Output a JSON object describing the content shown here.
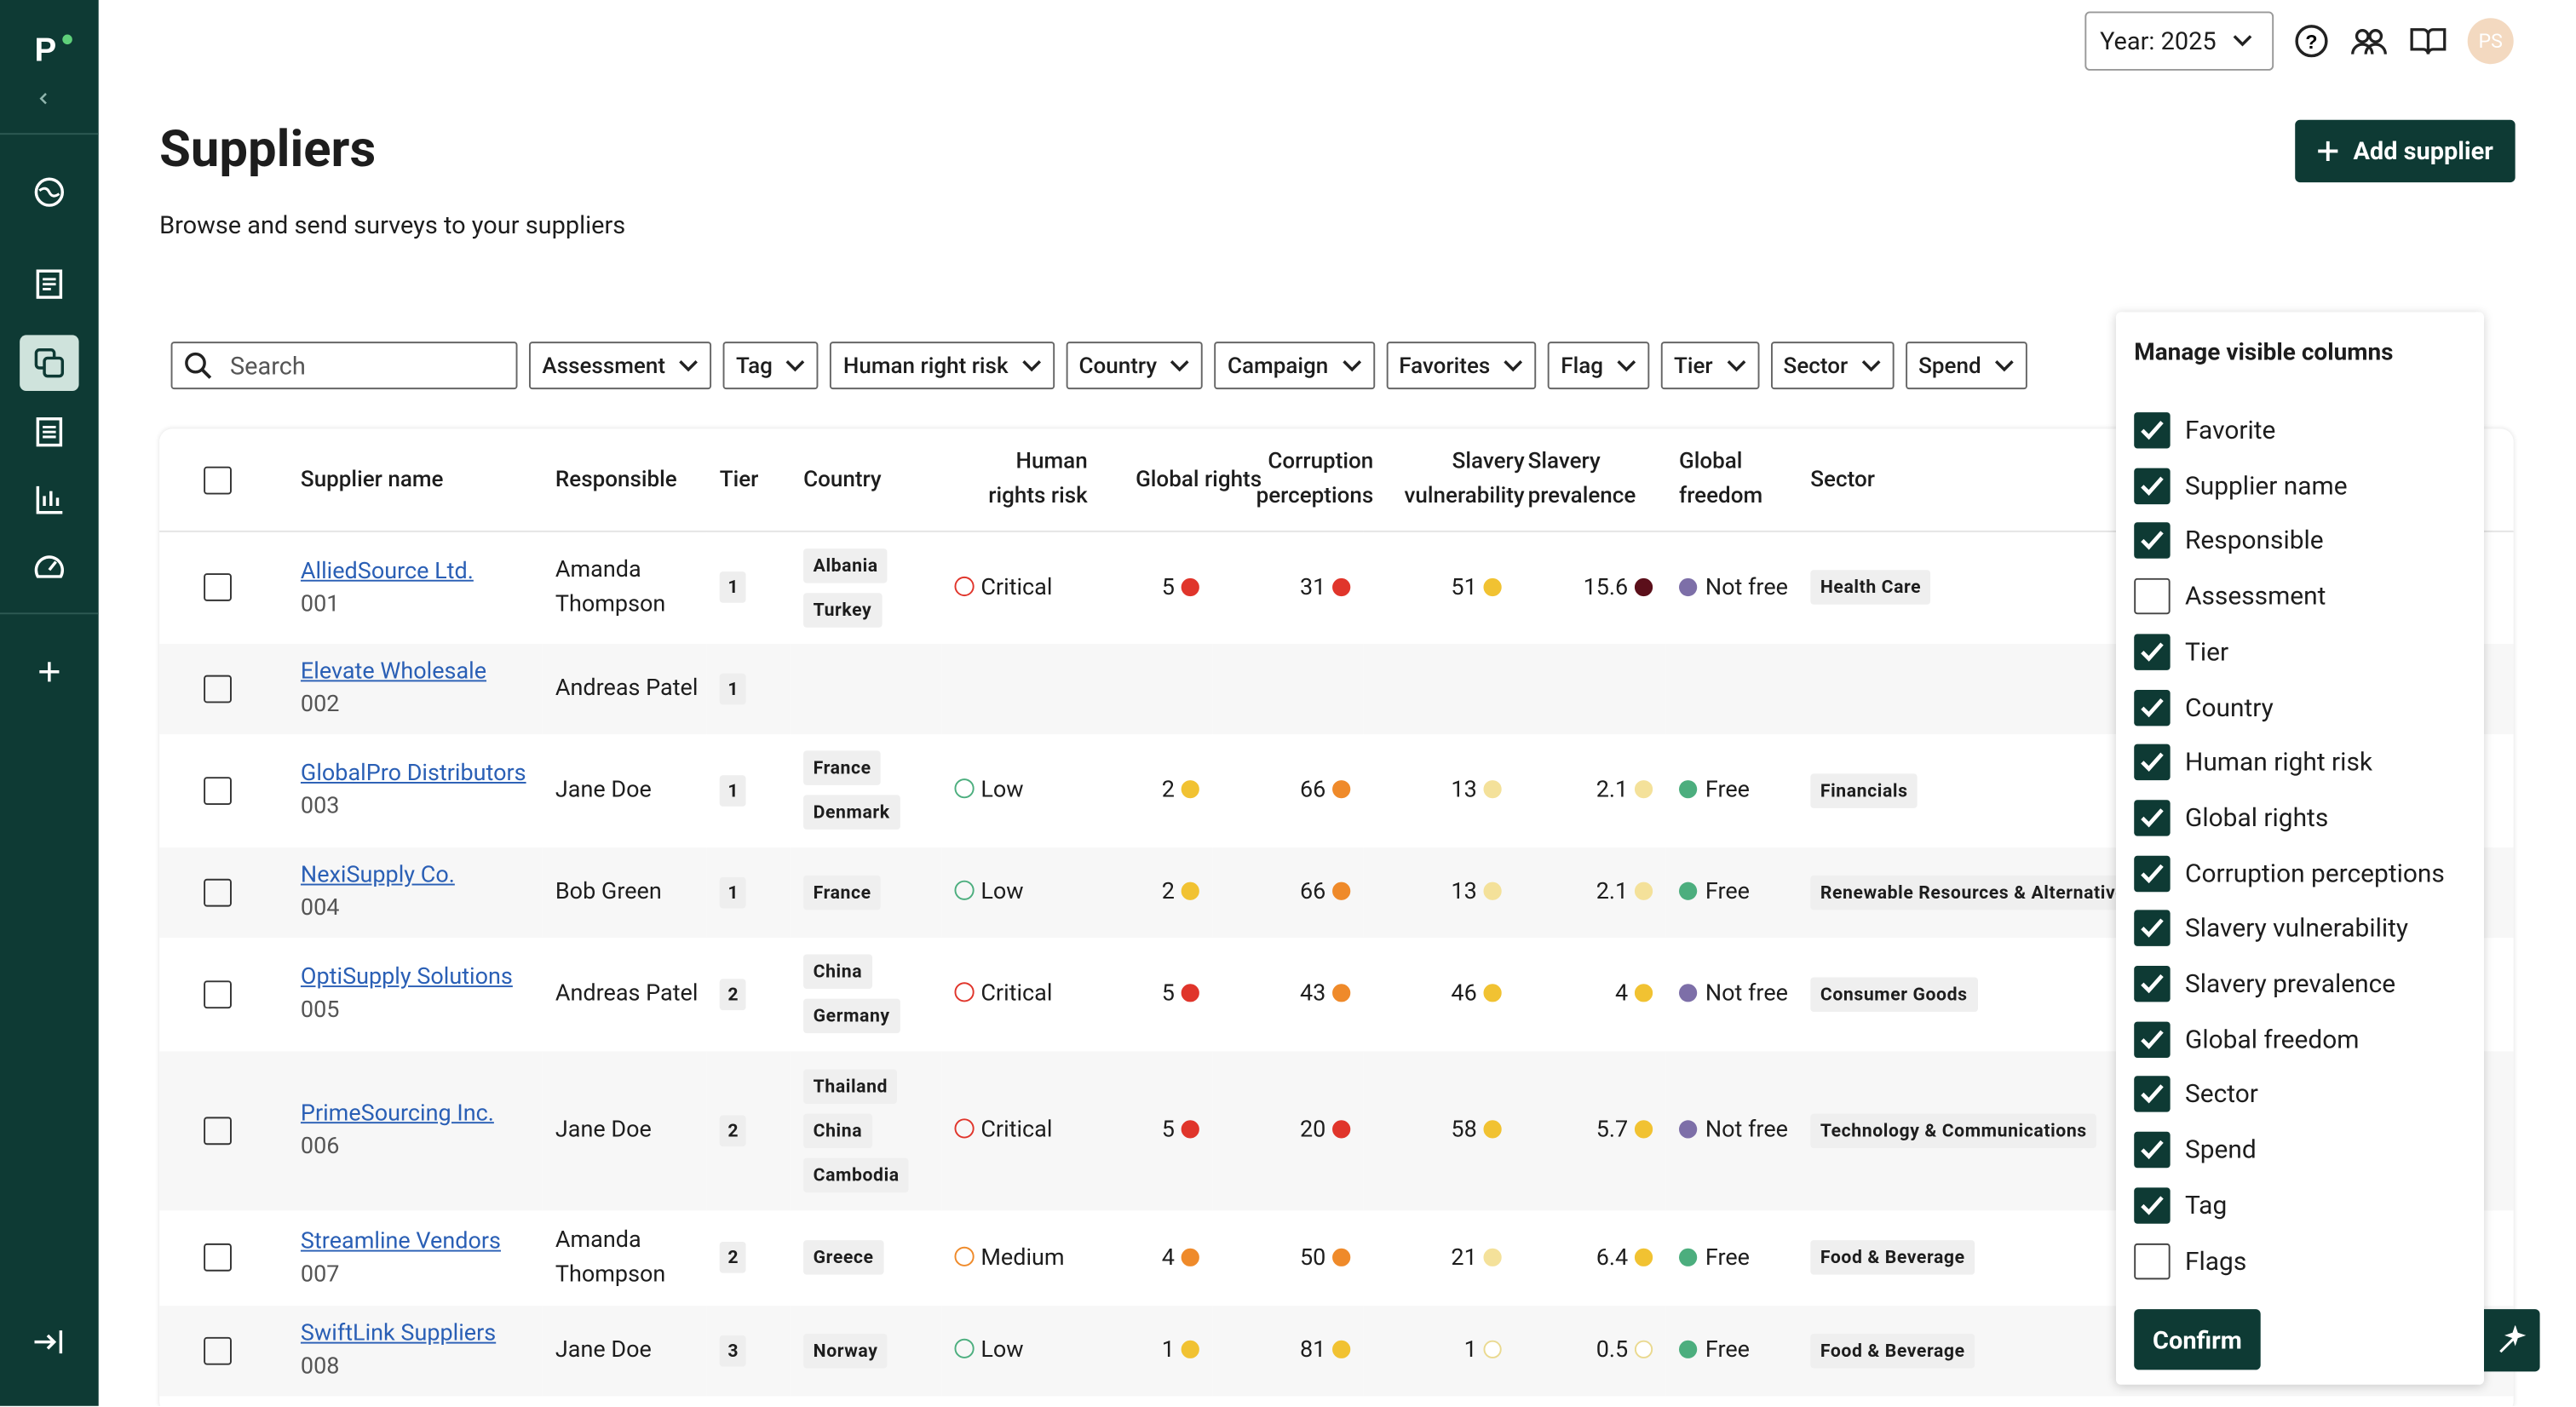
{
  "header": {
    "year": "Year: 2025",
    "avatar": "PS",
    "title": "Suppliers",
    "subtitle": "Browse and send surveys to your suppliers",
    "add_button": "Add supplier"
  },
  "filters": {
    "search": "Search",
    "items": [
      "Assessment",
      "Tag",
      "Human right risk",
      "Country",
      "Campaign",
      "Favorites",
      "Flag",
      "Tier",
      "Sector",
      "Spend"
    ]
  },
  "table": {
    "columns": [
      "Supplier name",
      "Responsible",
      "Tier",
      "Country",
      "Human rights risk",
      "Global rights",
      "Corruption perceptions",
      "Slavery vulnerability",
      "Slavery prevalence",
      "Global freedom",
      "Sector"
    ],
    "rows": [
      {
        "name": "AlliedSource Ltd.",
        "id": "001",
        "responsible": "Amanda Thompson",
        "tier": "1",
        "countries": [
          "Albania",
          "Turkey"
        ],
        "risk": {
          "text": "Critical",
          "level": "critical"
        },
        "global_rights": {
          "text": "5",
          "dot": "red"
        },
        "corruption": {
          "text": "31",
          "dot": "red"
        },
        "slavery_vulnerability": {
          "text": "51",
          "dot": "yellow"
        },
        "slavery_prevalence": {
          "text": "15.6",
          "dot": "dark"
        },
        "freedom": {
          "text": "Not free",
          "dot": "purple"
        },
        "sector": "Health Care"
      },
      {
        "name": "Elevate Wholesale",
        "id": "002",
        "responsible": "Andreas Patel",
        "tier": "1",
        "countries": [],
        "risk": null,
        "global_rights": null,
        "corruption": null,
        "slavery_vulnerability": null,
        "slavery_prevalence": null,
        "freedom": null,
        "sector": null
      },
      {
        "name": "GlobalPro Distributors",
        "id": "003",
        "responsible": "Jane Doe",
        "tier": "1",
        "countries": [
          "France",
          "Denmark"
        ],
        "risk": {
          "text": "Low",
          "level": "low"
        },
        "global_rights": {
          "text": "2",
          "dot": "yellow"
        },
        "corruption": {
          "text": "66",
          "dot": "orange"
        },
        "slavery_vulnerability": {
          "text": "13",
          "dot": "pale"
        },
        "slavery_prevalence": {
          "text": "2.1",
          "dot": "pale"
        },
        "freedom": {
          "text": "Free",
          "dot": "green"
        },
        "sector": "Financials"
      },
      {
        "name": "NexiSupply Co.",
        "id": "004",
        "responsible": "Bob Green",
        "tier": "1",
        "countries": [
          "France"
        ],
        "risk": {
          "text": "Low",
          "level": "low"
        },
        "global_rights": {
          "text": "2",
          "dot": "yellow"
        },
        "corruption": {
          "text": "66",
          "dot": "orange"
        },
        "slavery_vulnerability": {
          "text": "13",
          "dot": "pale"
        },
        "slavery_prevalence": {
          "text": "2.1",
          "dot": "pale"
        },
        "freedom": {
          "text": "Free",
          "dot": "green"
        },
        "sector": "Renewable Resources & Alternative Energy"
      },
      {
        "name": "OptiSupply Solutions",
        "id": "005",
        "responsible": "Andreas Patel",
        "tier": "2",
        "countries": [
          "China",
          "Germany"
        ],
        "risk": {
          "text": "Critical",
          "level": "critical"
        },
        "global_rights": {
          "text": "5",
          "dot": "red"
        },
        "corruption": {
          "text": "43",
          "dot": "orange"
        },
        "slavery_vulnerability": {
          "text": "46",
          "dot": "yellow"
        },
        "slavery_prevalence": {
          "text": "4",
          "dot": "yellow"
        },
        "freedom": {
          "text": "Not free",
          "dot": "purple"
        },
        "sector": "Consumer Goods"
      },
      {
        "name": "PrimeSourcing Inc.",
        "id": "006",
        "responsible": "Jane Doe",
        "tier": "2",
        "countries": [
          "Thailand",
          "China",
          "Cambodia"
        ],
        "risk": {
          "text": "Critical",
          "level": "critical"
        },
        "global_rights": {
          "text": "5",
          "dot": "red"
        },
        "corruption": {
          "text": "20",
          "dot": "red"
        },
        "slavery_vulnerability": {
          "text": "58",
          "dot": "yellow"
        },
        "slavery_prevalence": {
          "text": "5.7",
          "dot": "yellow"
        },
        "freedom": {
          "text": "Not free",
          "dot": "purple"
        },
        "sector": "Technology & Communications"
      },
      {
        "name": "Streamline Vendors",
        "id": "007",
        "responsible": "Amanda Thompson",
        "tier": "2",
        "countries": [
          "Greece"
        ],
        "risk": {
          "text": "Medium",
          "level": "medium"
        },
        "global_rights": {
          "text": "4",
          "dot": "orange"
        },
        "corruption": {
          "text": "50",
          "dot": "orange"
        },
        "slavery_vulnerability": {
          "text": "21",
          "dot": "pale"
        },
        "slavery_prevalence": {
          "text": "6.4",
          "dot": "yellow"
        },
        "freedom": {
          "text": "Free",
          "dot": "green"
        },
        "sector": "Food & Beverage"
      },
      {
        "name": "SwiftLink Suppliers",
        "id": "008",
        "responsible": "Jane Doe",
        "tier": "3",
        "countries": [
          "Norway"
        ],
        "risk": {
          "text": "Low",
          "level": "low"
        },
        "global_rights": {
          "text": "1",
          "dot": "yellow"
        },
        "corruption": {
          "text": "81",
          "dot": "yellow"
        },
        "slavery_vulnerability": {
          "text": "1",
          "dot": "empty"
        },
        "slavery_prevalence": {
          "text": "0.5",
          "dot": "empty"
        },
        "freedom": {
          "text": "Free",
          "dot": "green"
        },
        "sector": "Food & Beverage"
      }
    ]
  },
  "panel": {
    "title": "Manage visible columns",
    "items": [
      {
        "label": "Favorite",
        "checked": true
      },
      {
        "label": "Supplier name",
        "checked": true
      },
      {
        "label": "Responsible",
        "checked": true
      },
      {
        "label": "Assessment",
        "checked": false
      },
      {
        "label": "Tier",
        "checked": true
      },
      {
        "label": "Country",
        "checked": true
      },
      {
        "label": "Human right risk",
        "checked": true
      },
      {
        "label": "Global rights",
        "checked": true
      },
      {
        "label": "Corruption perceptions",
        "checked": true
      },
      {
        "label": "Slavery vulnerability",
        "checked": true
      },
      {
        "label": "Slavery prevalence",
        "checked": true
      },
      {
        "label": "Global freedom",
        "checked": true
      },
      {
        "label": "Sector",
        "checked": true
      },
      {
        "label": "Spend",
        "checked": true
      },
      {
        "label": "Tag",
        "checked": true
      },
      {
        "label": "Flags",
        "checked": false
      }
    ],
    "confirm": "Confirm"
  }
}
